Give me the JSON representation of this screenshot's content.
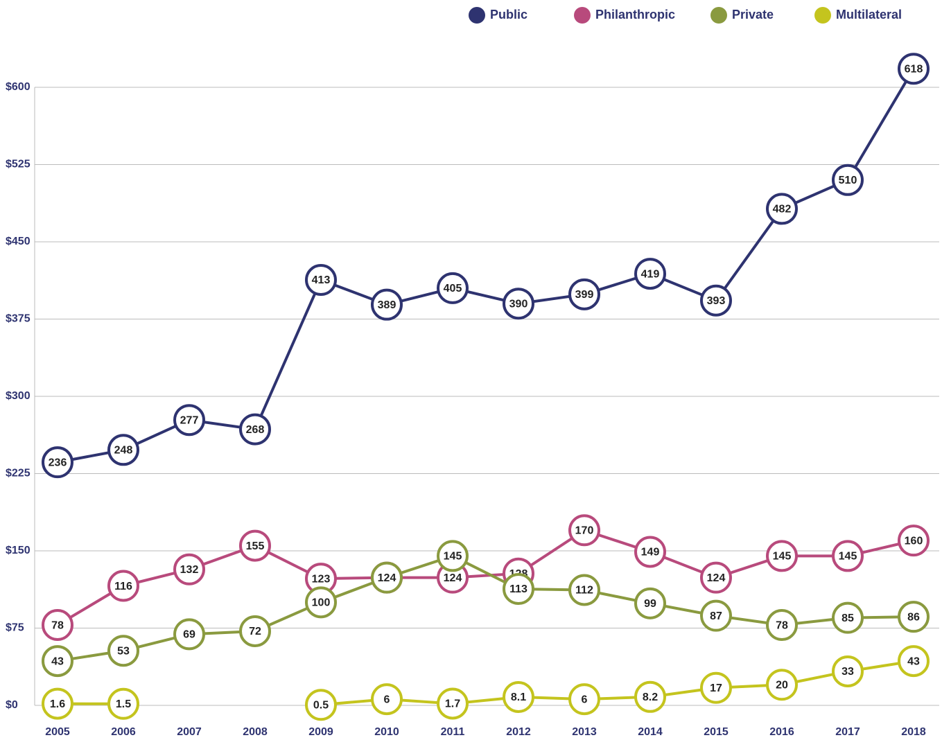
{
  "chart_data": {
    "type": "line",
    "categories": [
      "2005",
      "2006",
      "2007",
      "2008",
      "2009",
      "2010",
      "2011",
      "2012",
      "2013",
      "2014",
      "2015",
      "2016",
      "2017",
      "2018"
    ],
    "series": [
      {
        "name": "Public",
        "color": "#2e3370",
        "values": [
          236,
          248,
          277,
          268,
          413,
          389,
          405,
          390,
          399,
          419,
          393,
          482,
          510,
          618
        ]
      },
      {
        "name": "Philanthropic",
        "color": "#b84a7c",
        "values": [
          78,
          116,
          132,
          155,
          123,
          124,
          124,
          128,
          170,
          149,
          124,
          145,
          145,
          160
        ]
      },
      {
        "name": "Private",
        "color": "#8a9a3f",
        "values": [
          43,
          53,
          69,
          72,
          100,
          124,
          145,
          113,
          112,
          99,
          87,
          78,
          85,
          86
        ]
      },
      {
        "name": "Multilateral",
        "color": "#c4c41e",
        "values": [
          1.6,
          1.5,
          null,
          null,
          0.5,
          6,
          1.7,
          8.1,
          6,
          8.2,
          17,
          20,
          33,
          43
        ]
      }
    ],
    "ylim": [
      0,
      650
    ],
    "yticks": [
      {
        "value": 0,
        "label": "$0"
      },
      {
        "value": 75,
        "label": "$75"
      },
      {
        "value": 150,
        "label": "$150"
      },
      {
        "value": 225,
        "label": "$225"
      },
      {
        "value": 300,
        "label": "$300"
      },
      {
        "value": 375,
        "label": "$375"
      },
      {
        "value": 450,
        "label": "$450"
      },
      {
        "value": 525,
        "label": "$525"
      },
      {
        "value": 600,
        "label": "$600"
      }
    ],
    "grid": true,
    "legend": "top-right"
  }
}
